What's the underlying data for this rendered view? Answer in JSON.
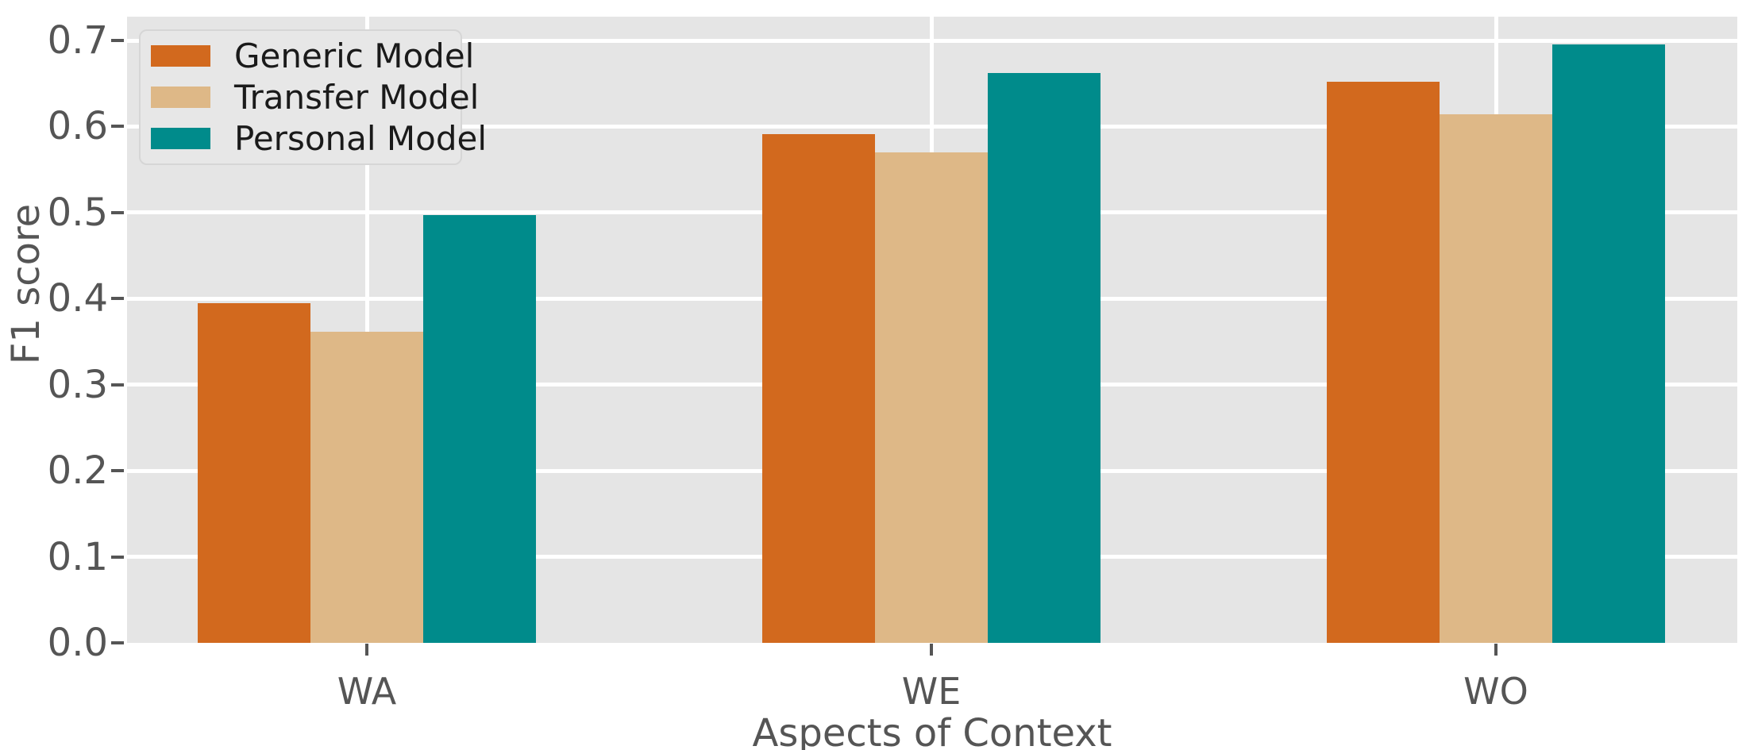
{
  "chart_data": {
    "type": "bar",
    "title": "",
    "categories": [
      "WA",
      "WE",
      "WO"
    ],
    "series": [
      {
        "name": "Generic Model",
        "color": "#d2691e",
        "values": [
          0.395,
          0.591,
          0.652
        ]
      },
      {
        "name": "Transfer Model",
        "color": "#deb887",
        "values": [
          0.362,
          0.57,
          0.614
        ]
      },
      {
        "name": "Personal Model",
        "color": "#008b8b",
        "values": [
          0.497,
          0.662,
          0.695
        ]
      }
    ],
    "xlabel": "Aspects of Context",
    "ylabel": "F1 score",
    "ylim": [
      0,
      0.727
    ],
    "yticks": [
      0,
      0.1,
      0.2,
      0.3,
      0.4,
      0.5,
      0.6,
      0.7
    ],
    "ytick_labels": [
      "0.0",
      "0.1",
      "0.2",
      "0.3",
      "0.4",
      "0.5",
      "0.6",
      "0.7"
    ],
    "grid": true,
    "legend_position": "upper left",
    "colors": {
      "plot_background": "#e5e5e5",
      "gridline": "#ffffff",
      "tick_text": "#555555",
      "axis_label_text": "#555555",
      "legend_text": "#1a1a1a",
      "legend_background": "#e7e7e7",
      "legend_border": "#d6d6d6"
    }
  }
}
